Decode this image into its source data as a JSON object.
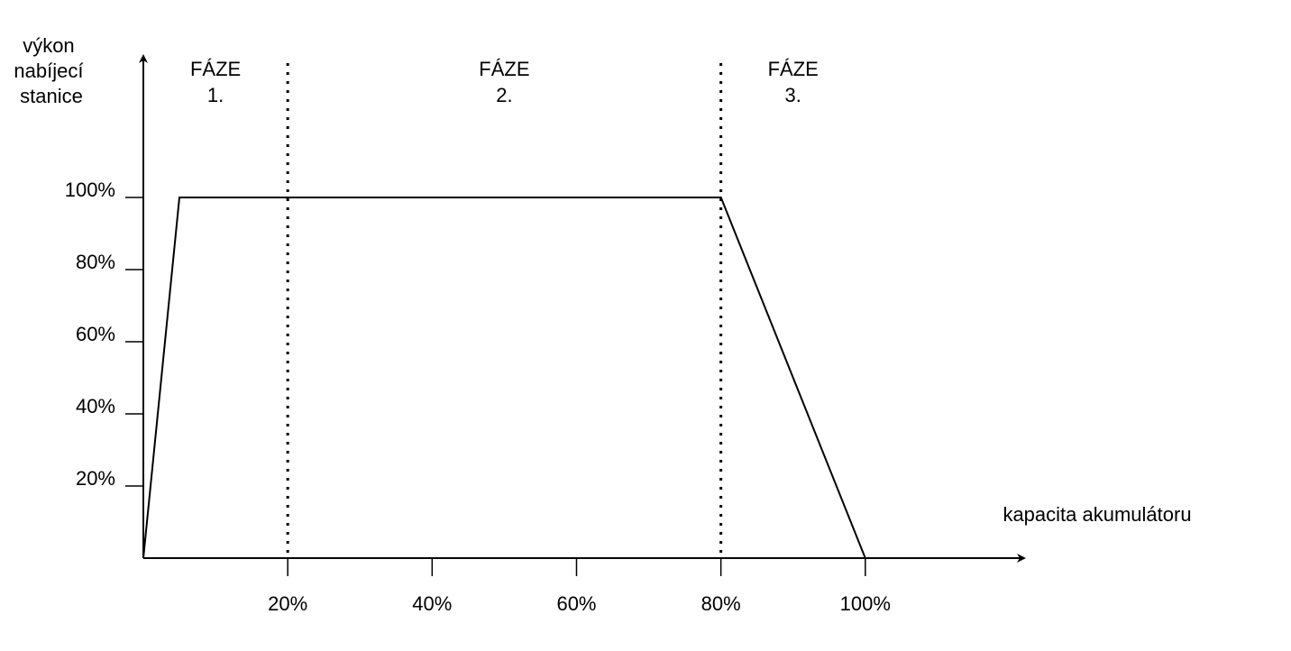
{
  "chart_data": {
    "type": "line",
    "title": "",
    "ylabel": [
      "výkon",
      "nabíjecí",
      "stanice"
    ],
    "xlabel": "kapacita akumulátoru",
    "x_ticks": [
      "20%",
      "40%",
      "60%",
      "80%",
      "100%"
    ],
    "x_tick_values": [
      20,
      40,
      60,
      80,
      100
    ],
    "y_ticks": [
      "20%",
      "40%",
      "60%",
      "80%",
      "100%"
    ],
    "y_tick_values": [
      20,
      40,
      60,
      80,
      100
    ],
    "xlim": [
      0,
      122
    ],
    "ylim": [
      0,
      140
    ],
    "grid": false,
    "series": [
      {
        "x": [
          0,
          5,
          80,
          100
        ],
        "y": [
          0,
          100,
          100,
          0
        ]
      }
    ],
    "phase_dividers": [
      20,
      80
    ],
    "phases": [
      {
        "name": "FÁZE",
        "number": "1.",
        "center_x": 10
      },
      {
        "name": "FÁZE",
        "number": "2.",
        "center_x": 50
      },
      {
        "name": "FÁZE",
        "number": "3.",
        "center_x": 90
      }
    ]
  }
}
